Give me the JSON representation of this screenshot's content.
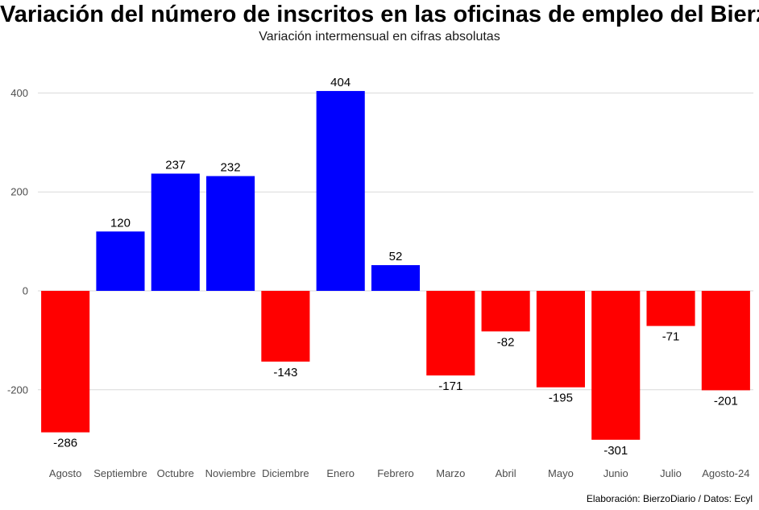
{
  "title": "Variación del número de inscritos en las oficinas de empleo del Bierzo",
  "subtitle": "Variación intermensual en cifras absolutas",
  "caption": "Elaboración: BierzoDiario / Datos: Ecyl",
  "colors": {
    "positive": "#0000ff",
    "negative": "#ff0000",
    "grid": "#d9d9d9",
    "axis_text": "#4d4d4d"
  },
  "chart_data": {
    "type": "bar",
    "title": "Variación del número de inscritos en las oficinas de empleo del Bierzo",
    "subtitle": "Variación intermensual en cifras absolutas",
    "xlabel": "",
    "ylabel": "",
    "categories": [
      "Agosto",
      "Septiembre",
      "Octubre",
      "Noviembre",
      "Diciembre",
      "Enero",
      "Febrero",
      "Marzo",
      "Abril",
      "Mayo",
      "Junio",
      "Julio",
      "Agosto-24"
    ],
    "values": [
      -286,
      120,
      237,
      232,
      -143,
      404,
      52,
      -171,
      -82,
      -195,
      -301,
      -71,
      -201
    ],
    "ylim": [
      -350,
      450
    ],
    "yticks": [
      -200,
      0,
      200,
      400
    ],
    "grid": true,
    "legend": "none",
    "data_labels": true
  }
}
